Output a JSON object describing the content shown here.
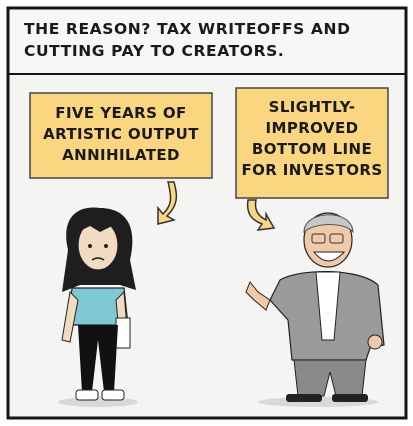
{
  "caption": {
    "lines": [
      "THE REASON? TAX WRITEOFFS AND",
      "CUTTING PAY TO CREATORS."
    ]
  },
  "boxes": [
    {
      "lines": [
        "FIVE YEARS OF",
        "ARTISTIC OUTPUT",
        "ANNIHILATED"
      ]
    },
    {
      "lines": [
        "SLIGHTLY-",
        "IMPROVED",
        "BOTTOM LINE",
        "FOR INVESTORS"
      ]
    }
  ]
}
